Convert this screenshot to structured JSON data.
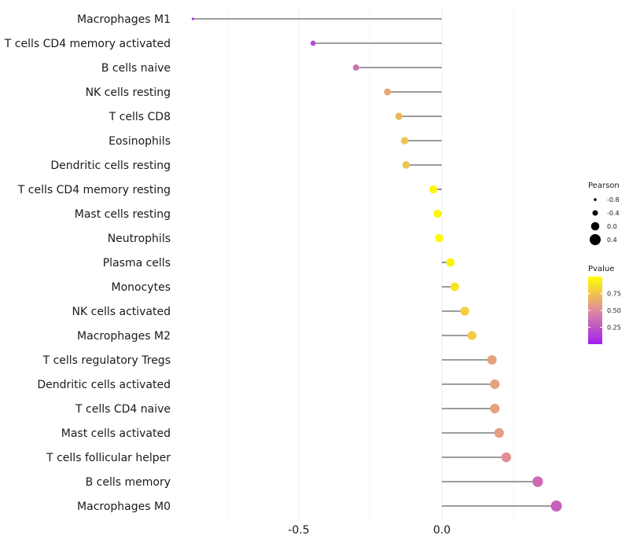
{
  "chart_data": {
    "type": "lollipop",
    "title": "",
    "xlabel": "",
    "ylabel": "",
    "xlim": [
      -0.87,
      0.45
    ],
    "x_ticks": [
      {
        "value": -0.5,
        "label": "-0.5"
      },
      {
        "value": 0.0,
        "label": "0.0"
      }
    ],
    "grid": true,
    "categories": [
      "Macrophages M1",
      "T cells CD4 memory activated",
      "B cells naive",
      "NK cells resting",
      "T cells CD8",
      "Eosinophils",
      "Dendritic cells resting",
      "T cells CD4 memory resting",
      "Mast cells resting",
      "Neutrophils",
      "Plasma cells",
      "Monocytes",
      "NK cells activated",
      "Macrophages M2",
      "T cells regulatory  Tregs ",
      "Dendritic cells activated",
      "T cells CD4 naive",
      "Mast cells activated",
      "T cells follicular helper",
      "B cells memory",
      "Macrophages M0"
    ],
    "series": [
      {
        "name": "Pearson",
        "values": [
          -0.87,
          -0.45,
          -0.3,
          -0.19,
          -0.15,
          -0.13,
          -0.125,
          -0.03,
          -0.015,
          -0.01,
          0.03,
          0.045,
          0.08,
          0.105,
          0.175,
          0.185,
          0.185,
          0.2,
          0.225,
          0.335,
          0.4
        ]
      },
      {
        "name": "Pvalue",
        "values": [
          0.01,
          0.2,
          0.38,
          0.62,
          0.7,
          0.75,
          0.75,
          0.96,
          0.97,
          0.98,
          0.95,
          0.88,
          0.8,
          0.78,
          0.6,
          0.6,
          0.6,
          0.58,
          0.52,
          0.35,
          0.3
        ]
      }
    ],
    "legend": {
      "position": "right",
      "size_title": "Pearson",
      "size_entries": [
        {
          "value": -0.8,
          "label": "-0.8"
        },
        {
          "value": -0.4,
          "label": "-0.4"
        },
        {
          "value": 0.0,
          "label": "0.0"
        },
        {
          "value": 0.4,
          "label": "0.4"
        }
      ],
      "color_title": "Pvalue",
      "color_ticks": [
        {
          "value": 0.75,
          "label": "0.75"
        },
        {
          "value": 0.5,
          "label": "0.50"
        },
        {
          "value": 0.25,
          "label": "0.25"
        }
      ],
      "color_range": [
        0.0,
        1.0
      ],
      "color_low": "#a020f0",
      "color_mid": "#e08a9c",
      "color_high": "#ffff00"
    }
  }
}
